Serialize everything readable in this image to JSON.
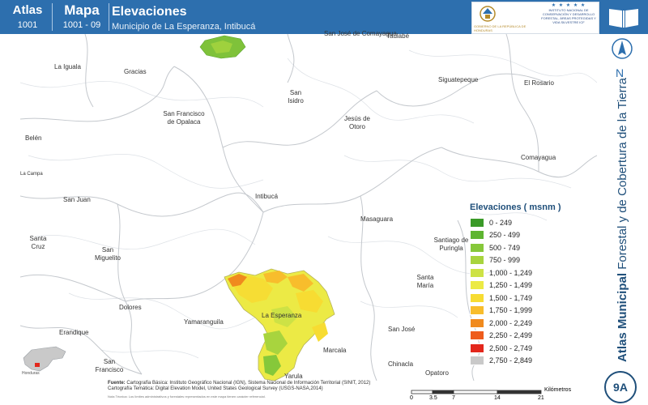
{
  "header": {
    "atlas_label": "Atlas",
    "atlas_number": "1001",
    "mapa_label": "Mapa",
    "mapa_number": "1001 - 09",
    "title": "Elevaciones",
    "subtitle": "Municipio de La Esperanza, Intibucá",
    "logo_left_text": "GOBIERNO DE LA REPÚBLICA DE HONDURAS",
    "logo_right_text": "INSTITUTO NACIONAL DE CONSERVACIÓN Y DESARROLLO FORESTAL, ÁREAS PROTEGIDAS Y VIDA SILVESTRE ICF"
  },
  "places": [
    {
      "name": "San José de Comayagua"
    },
    {
      "name": "Taulabé"
    },
    {
      "name": "La Iguala"
    },
    {
      "name": "Gracias"
    },
    {
      "name": "Siguatepeque"
    },
    {
      "name": "El Rosario"
    },
    {
      "name": "San Isidro"
    },
    {
      "name": "San Francisco de Opalaca"
    },
    {
      "name": "Jesús de Otoro"
    },
    {
      "name": "Belén"
    },
    {
      "name": "La Campa"
    },
    {
      "name": "Comayagua"
    },
    {
      "name": "San Juan"
    },
    {
      "name": "Intibucá"
    },
    {
      "name": "Masaguara"
    },
    {
      "name": "Santa Cruz"
    },
    {
      "name": "San Miguelito"
    },
    {
      "name": "Santiago de Puringla"
    },
    {
      "name": "Dolores"
    },
    {
      "name": "La Esperanza"
    },
    {
      "name": "Santa María"
    },
    {
      "name": "Yamaranguila"
    },
    {
      "name": "Erandique"
    },
    {
      "name": "San José"
    },
    {
      "name": "Marcala"
    },
    {
      "name": "Chinacla"
    },
    {
      "name": "San Francisco"
    },
    {
      "name": "Yarula"
    },
    {
      "name": "Opatoro"
    }
  ],
  "legend": {
    "title": "Elevaciones ( msnm )",
    "items": [
      {
        "label": "0 - 249",
        "color": "#3a9a28"
      },
      {
        "label": "250 - 499",
        "color": "#5eb531"
      },
      {
        "label": "500 - 749",
        "color": "#86c83a"
      },
      {
        "label": "750 - 999",
        "color": "#a8d43e"
      },
      {
        "label": "1,000 - 1,249",
        "color": "#cde245"
      },
      {
        "label": "1,250 - 1,499",
        "color": "#ecea45"
      },
      {
        "label": "1,500 - 1,749",
        "color": "#f7dc32"
      },
      {
        "label": "1,750 - 1,999",
        "color": "#f8bd2c"
      },
      {
        "label": "2,000 - 2,249",
        "color": "#f08a1e"
      },
      {
        "label": "2,250 - 2,499",
        "color": "#ee5c1c"
      },
      {
        "label": "2,500 - 2,749",
        "color": "#e3271c"
      },
      {
        "label": "2,750 - 2,849",
        "color": "#c9c9c9"
      }
    ]
  },
  "side_title": {
    "bold": "Atlas Municipal",
    "rest": " Forestal y de Cobertura de la Tierra"
  },
  "north_label": "N",
  "sheet_id": "9A",
  "sources": {
    "label": "Fuente:",
    "line1": "Cartografía Básica: Instituto Geográfico Nacional (IGN), Sistema Nacional de Información Territorial (SINIT, 2012)",
    "line2": "Cartografía Temática: Digital Elevation Model, United States Geological Survey (USGS-NASA,2014)",
    "note": "Nota Técnica: Los límites administrativos y forestales representados en este mapa tienen carácter referencial."
  },
  "scale": {
    "ticks": [
      "0",
      "3.5",
      "7",
      "14",
      "21"
    ],
    "unit": "Kilómetros"
  },
  "inset_label": "Honduras"
}
